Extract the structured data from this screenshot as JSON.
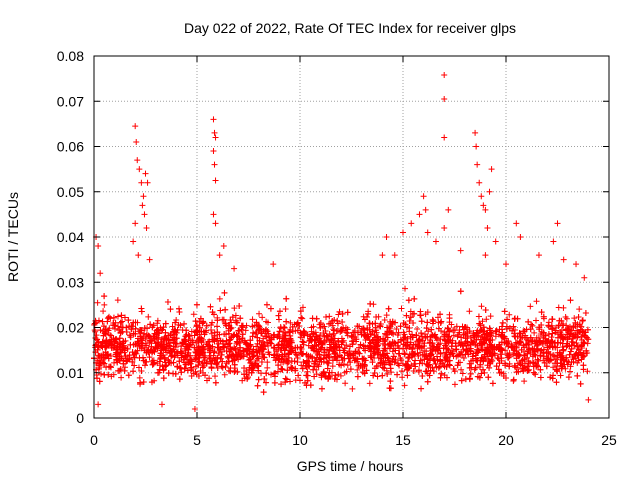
{
  "chart_data": {
    "type": "scatter",
    "title": "Day 022 of 2022, Rate Of TEC Index for receiver glps",
    "xlabel": "GPS time / hours",
    "ylabel": "ROTI / TECUs",
    "xlim": [
      0,
      25
    ],
    "ylim": [
      0,
      0.08
    ],
    "x_ticks": [
      0,
      5,
      10,
      15,
      20,
      25
    ],
    "x_tick_labels": [
      "0",
      "5",
      "10",
      "15",
      "20",
      "25"
    ],
    "y_ticks": [
      0,
      0.01,
      0.02,
      0.03,
      0.04,
      0.05,
      0.06,
      0.07,
      0.08
    ],
    "y_tick_labels": [
      "0",
      "0.01",
      "0.02",
      "0.03",
      "0.04",
      "0.05",
      "0.06",
      "0.07",
      "0.08"
    ],
    "grid": true,
    "marker": "+",
    "marker_color": "#ff0000",
    "data_x_range": [
      0,
      24
    ],
    "baseline_band": {
      "low": 0.005,
      "high": 0.026,
      "typical": 0.014
    },
    "series": [
      {
        "points": [
          [
            0.1,
            0.04
          ],
          [
            0.2,
            0.038
          ],
          [
            0.3,
            0.032
          ],
          [
            0.5,
            0.025
          ],
          [
            2.0,
            0.0645
          ],
          [
            2.05,
            0.061
          ],
          [
            2.1,
            0.057
          ],
          [
            2.2,
            0.055
          ],
          [
            2.3,
            0.052
          ],
          [
            2.4,
            0.049
          ],
          [
            2.5,
            0.054
          ],
          [
            2.6,
            0.052
          ],
          [
            2.35,
            0.047
          ],
          [
            2.45,
            0.045
          ],
          [
            1.9,
            0.039
          ],
          [
            2.0,
            0.043
          ],
          [
            2.15,
            0.036
          ],
          [
            2.55,
            0.042
          ],
          [
            2.7,
            0.035
          ],
          [
            5.8,
            0.066
          ],
          [
            5.85,
            0.063
          ],
          [
            5.9,
            0.062
          ],
          [
            5.8,
            0.059
          ],
          [
            5.85,
            0.056
          ],
          [
            5.9,
            0.0525
          ],
          [
            5.8,
            0.045
          ],
          [
            5.9,
            0.043
          ],
          [
            6.3,
            0.038
          ],
          [
            6.1,
            0.036
          ],
          [
            8.7,
            0.034
          ],
          [
            6.8,
            0.033
          ],
          [
            14.0,
            0.036
          ],
          [
            14.2,
            0.04
          ],
          [
            14.6,
            0.036
          ],
          [
            15.0,
            0.041
          ],
          [
            15.4,
            0.043
          ],
          [
            15.8,
            0.045
          ],
          [
            16.0,
            0.049
          ],
          [
            16.1,
            0.046
          ],
          [
            16.2,
            0.041
          ],
          [
            16.6,
            0.039
          ],
          [
            17.0,
            0.0758
          ],
          [
            17.0,
            0.0705
          ],
          [
            17.0,
            0.062
          ],
          [
            17.2,
            0.046
          ],
          [
            17.0,
            0.042
          ],
          [
            17.8,
            0.037
          ],
          [
            18.5,
            0.063
          ],
          [
            18.55,
            0.06
          ],
          [
            18.6,
            0.056
          ],
          [
            18.7,
            0.052
          ],
          [
            18.8,
            0.049
          ],
          [
            19.0,
            0.046
          ],
          [
            19.2,
            0.05
          ],
          [
            19.3,
            0.055
          ],
          [
            18.9,
            0.047
          ],
          [
            19.1,
            0.042
          ],
          [
            19.5,
            0.039
          ],
          [
            19.0,
            0.036
          ],
          [
            20.0,
            0.034
          ],
          [
            20.5,
            0.043
          ],
          [
            20.7,
            0.04
          ],
          [
            21.6,
            0.036
          ],
          [
            22.3,
            0.039
          ],
          [
            22.5,
            0.043
          ],
          [
            22.8,
            0.035
          ],
          [
            23.4,
            0.034
          ],
          [
            23.8,
            0.031
          ],
          [
            0.2,
            0.003
          ],
          [
            4.9,
            0.002
          ],
          [
            3.3,
            0.003
          ],
          [
            24.0,
            0.004
          ]
        ]
      }
    ]
  }
}
